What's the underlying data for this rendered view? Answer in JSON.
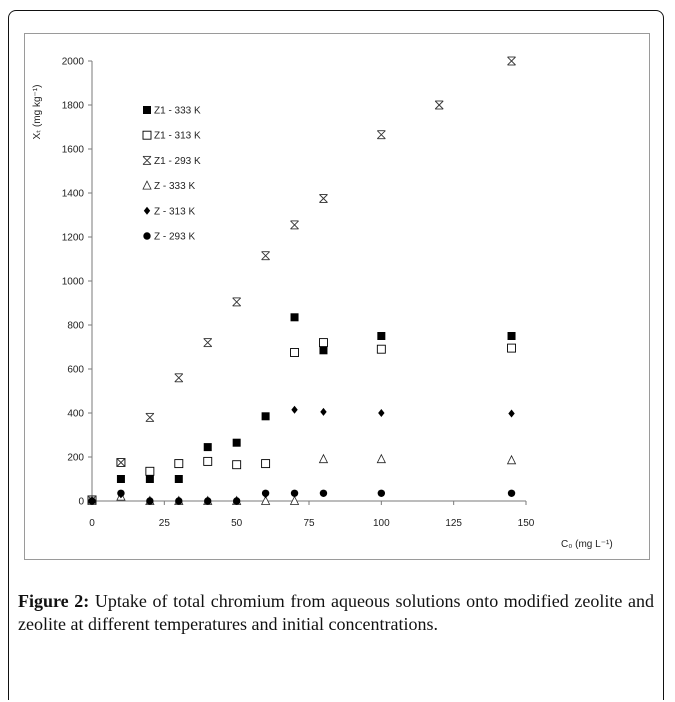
{
  "caption": {
    "label": "Figure 2:",
    "text": " Uptake of total chromium from aqueous solutions onto modified zeolite and zeolite at different temperatures and initial concentrations."
  },
  "chart_data": {
    "type": "scatter",
    "xlabel": "C₀ (mg L⁻¹)",
    "ylabel": "Xₜ (mg kg⁻¹)",
    "xlim": [
      0,
      150
    ],
    "ylim": [
      0,
      2000
    ],
    "xticks": [
      0,
      25,
      50,
      75,
      100,
      125,
      150
    ],
    "yticks": [
      0,
      200,
      400,
      600,
      800,
      1000,
      1200,
      1400,
      1600,
      1800,
      2000
    ],
    "legend_position": "top-left",
    "grid": false,
    "series": [
      {
        "name": "Z1 - 333 K",
        "marker": "filled-square",
        "x": [
          0,
          10,
          20,
          30,
          40,
          50,
          60,
          70,
          80,
          100,
          145
        ],
        "y": [
          5,
          100,
          100,
          100,
          245,
          265,
          385,
          835,
          685,
          750,
          750
        ]
      },
      {
        "name": "Z1 - 313 K",
        "marker": "open-square",
        "x": [
          0,
          10,
          20,
          30,
          40,
          50,
          60,
          70,
          80,
          100,
          145
        ],
        "y": [
          5,
          175,
          135,
          170,
          180,
          165,
          170,
          675,
          720,
          690,
          695
        ]
      },
      {
        "name": "Z1 - 293 K",
        "marker": "asterisk",
        "x": [
          0,
          10,
          20,
          30,
          40,
          50,
          60,
          70,
          80,
          100,
          120,
          145
        ],
        "y": [
          5,
          175,
          380,
          560,
          720,
          905,
          1115,
          1255,
          1375,
          1665,
          1800,
          2000
        ]
      },
      {
        "name": "Z - 333 K",
        "marker": "open-triangle",
        "x": [
          0,
          10,
          20,
          30,
          40,
          50,
          60,
          70,
          80,
          100,
          145
        ],
        "y": [
          0,
          20,
          0,
          0,
          0,
          0,
          0,
          0,
          190,
          190,
          185
        ]
      },
      {
        "name": "Z - 313 K",
        "marker": "filled-diamond",
        "x": [
          0,
          10,
          20,
          30,
          40,
          50,
          60,
          70,
          80,
          100,
          145
        ],
        "y": [
          0,
          30,
          0,
          0,
          0,
          0,
          30,
          415,
          405,
          400,
          398
        ]
      },
      {
        "name": "Z - 293 K",
        "marker": "filled-circle",
        "x": [
          0,
          10,
          20,
          30,
          40,
          50,
          60,
          70,
          80,
          100,
          145
        ],
        "y": [
          0,
          35,
          0,
          0,
          0,
          0,
          35,
          35,
          35,
          35,
          35
        ]
      }
    ]
  }
}
